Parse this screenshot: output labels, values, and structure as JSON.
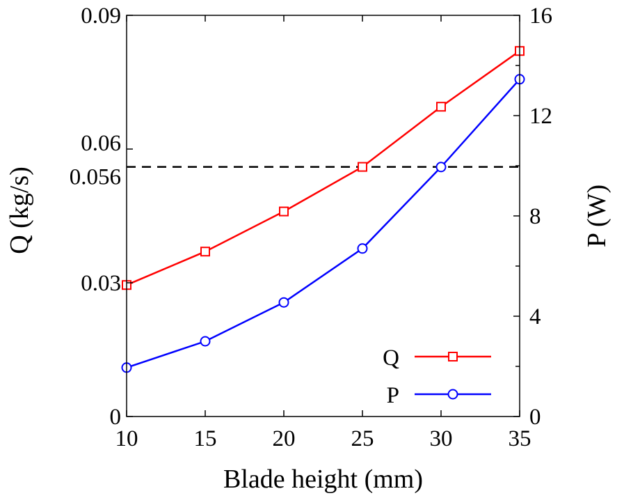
{
  "chart_data": {
    "type": "line",
    "xlabel": "Blade height (mm)",
    "ylabel_left": "Q (kg/s)",
    "ylabel_right": "P (W)",
    "x": [
      10,
      15,
      20,
      25,
      30,
      35
    ],
    "xlim": [
      10,
      35
    ],
    "xticks": [
      10,
      15,
      20,
      25,
      30,
      35
    ],
    "xtick_labels": [
      "10",
      "15",
      "20",
      "25",
      "30",
      "35"
    ],
    "ylim_left": [
      0,
      0.09
    ],
    "yticks_left": [
      0,
      0.03,
      0.056,
      0.06,
      0.09
    ],
    "ytick_labels_left": [
      "0",
      "0.03",
      "0.056",
      "0.06",
      "0.09"
    ],
    "ylim_right": [
      0,
      16
    ],
    "yticks_right": [
      0,
      4,
      8,
      12,
      16
    ],
    "ytick_labels_right": [
      "0",
      "4",
      "8",
      "12",
      "16"
    ],
    "reference_line": {
      "axis": "left",
      "value": 0.056,
      "style": "dashed",
      "color": "#000000"
    },
    "grid": false,
    "legend_position": "bottom-right",
    "series": [
      {
        "name": "Q",
        "axis": "left",
        "marker": "square",
        "color": "#ff0000",
        "values": [
          0.0295,
          0.037,
          0.046,
          0.056,
          0.0695,
          0.082
        ]
      },
      {
        "name": "P",
        "axis": "right",
        "marker": "circle",
        "color": "#0000ff",
        "values": [
          1.95,
          3.0,
          4.55,
          6.7,
          9.95,
          13.45
        ]
      }
    ]
  }
}
